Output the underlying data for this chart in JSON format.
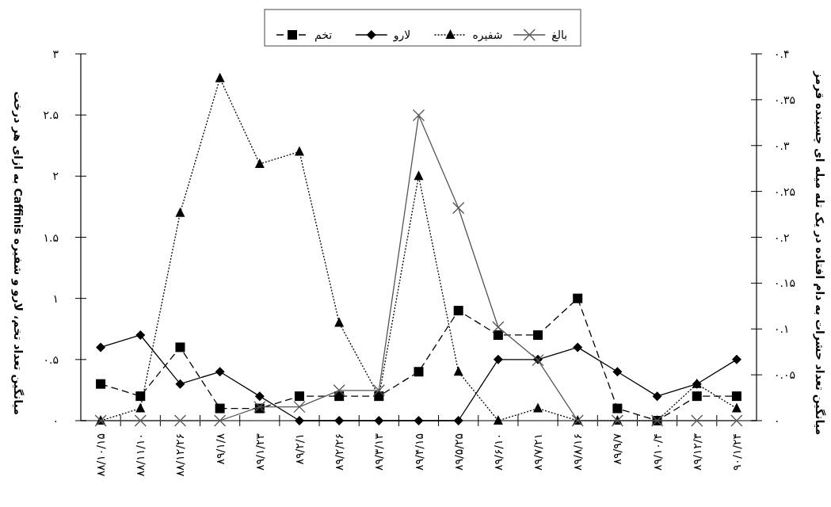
{
  "chart_data": {
    "type": "line",
    "ylabel": "میانگین تعداد تخم، لارو و شفیره Caffinis به ازای هر درخت",
    "y2label": "میانگین تعداد حشرات به دام افتاده در یک تله میله ای چسبنده قرمز",
    "categories": [
      "۸۸/۱۰/۱۵",
      "۸۸/۱۱/۱۰",
      "۸۸/۱۲/۲۶",
      "۸۹/۱/۸",
      "۸۹/۱/۲۳",
      "۸۹/۲/۱",
      "۸۹/۲/۲۶",
      "۸۹/۳/۱۳",
      "۸۹/۴/۱۵",
      "۸۹/۵/۲۵",
      "۸۹/۶/۱۰",
      "۸۹/۷/۲۱",
      "۸۹/۸/۱۶",
      "۸۹/۹/۷",
      "۸۹/۱۰/۴",
      "۸۹/۱۲/۳",
      "۹۰/۱/۲۴"
    ],
    "series": [
      {
        "name": "تخم",
        "color": "#000000",
        "marker": "square",
        "line_style": "dashed",
        "values": [
          0.3,
          0.2,
          0.6,
          0.1,
          0.1,
          0.2,
          0.2,
          0.2,
          0.4,
          0.9,
          0.7,
          0.7,
          1.0,
          0.1,
          0,
          0.2,
          0.2
        ]
      },
      {
        "name": "لارو",
        "color": "#000000",
        "marker": "diamond",
        "line_style": "solid",
        "values": [
          0.6,
          0.7,
          0.3,
          0.4,
          0.2,
          0,
          0,
          0,
          0,
          0,
          0.5,
          0.5,
          0.6,
          0.4,
          0.2,
          0.3,
          0.5
        ]
      },
      {
        "name": "شفیره",
        "color": "#000000",
        "marker": "triangle",
        "line_style": "dotted",
        "values": [
          0,
          0.1,
          1.7,
          2.8,
          2.1,
          2.2,
          0.8,
          0.2,
          2.0,
          0.4,
          0,
          0.1,
          0,
          0,
          0,
          0.3,
          0.1
        ]
      },
      {
        "name": "بالغ",
        "color": "#555555",
        "marker": "cross",
        "line_style": "solid",
        "axis": "y2",
        "values": [
          0,
          0,
          0,
          0,
          0.015,
          0.015,
          0.033,
          0.033,
          0.333,
          0.232,
          0.102,
          0.066,
          0,
          0,
          0,
          0,
          0
        ]
      }
    ],
    "ylim": [
      0,
      3
    ],
    "yticks": [
      {
        "value": 0,
        "label": "۰"
      },
      {
        "value": 0.5,
        "label": "۰.۵"
      },
      {
        "value": 1,
        "label": "۱"
      },
      {
        "value": 1.5,
        "label": "۱.۵"
      },
      {
        "value": 2,
        "label": "۲"
      },
      {
        "value": 2.5,
        "label": "۲.۵"
      },
      {
        "value": 3,
        "label": "۳"
      }
    ],
    "y2lim": [
      0,
      0.4
    ],
    "y2ticks": [
      {
        "value": 0,
        "label": "۰"
      },
      {
        "value": 0.05,
        "label": "۰.۰۵"
      },
      {
        "value": 0.1,
        "label": "۰.۱"
      },
      {
        "value": 0.15,
        "label": "۰.۱۵"
      },
      {
        "value": 0.2,
        "label": "۰.۲"
      },
      {
        "value": 0.25,
        "label": "۰.۲۵"
      },
      {
        "value": 0.3,
        "label": "۰.۳"
      },
      {
        "value": 0.35,
        "label": "۰.۳۵"
      },
      {
        "value": 0.4,
        "label": "۰.۴"
      }
    ],
    "grid": false,
    "legend": "top"
  }
}
